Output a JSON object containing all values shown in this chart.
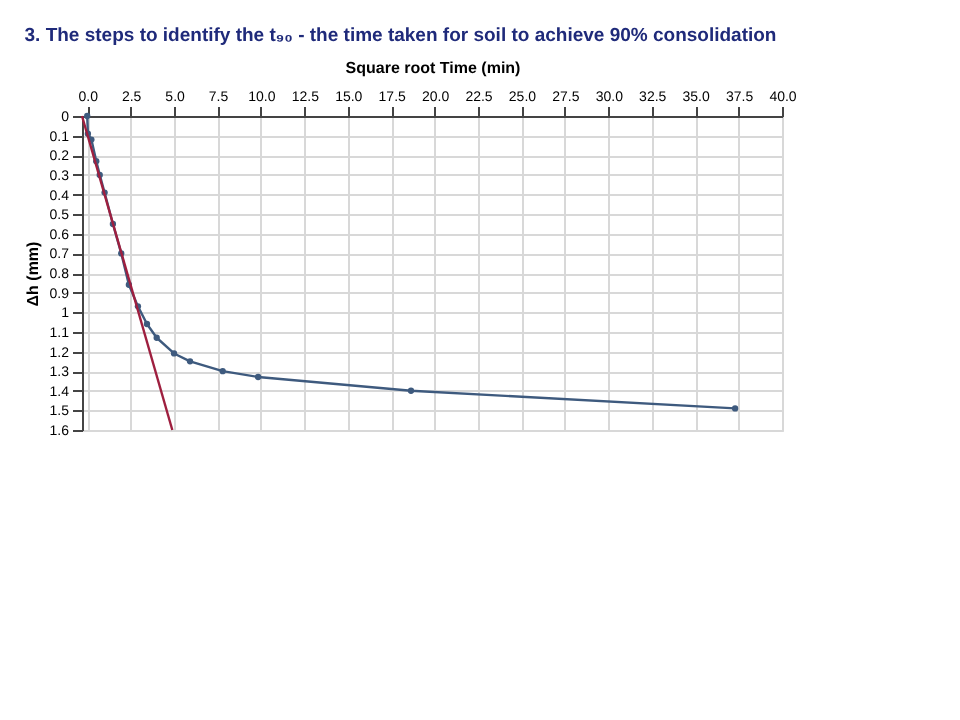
{
  "chart_data": {
    "type": "line",
    "title": "3. The steps to identify the t₉₀ - the time taken for soil to achieve 90% consolidation",
    "xlabel": "Square root Time (min)",
    "ylabel": "Δh (mm)",
    "xlim": [
      -0.3,
      40
    ],
    "ylim": [
      1.6,
      0
    ],
    "xticks": [
      {
        "value": 0,
        "label": "0.0"
      },
      {
        "value": 2.5,
        "label": "2.5"
      },
      {
        "value": 5,
        "label": "5.0"
      },
      {
        "value": 7.5,
        "label": "7.5"
      },
      {
        "value": 10,
        "label": "10.0"
      },
      {
        "value": 12.5,
        "label": "12.5"
      },
      {
        "value": 15,
        "label": "15.0"
      },
      {
        "value": 17.5,
        "label": "17.5"
      },
      {
        "value": 20,
        "label": "20.0"
      },
      {
        "value": 22.5,
        "label": "22.5"
      },
      {
        "value": 25,
        "label": "25.0"
      },
      {
        "value": 27.5,
        "label": "27.5"
      },
      {
        "value": 30,
        "label": "30.0"
      },
      {
        "value": 32.5,
        "label": "32.5"
      },
      {
        "value": 35,
        "label": "35.0"
      },
      {
        "value": 37.5,
        "label": "37.5"
      },
      {
        "value": 40,
        "label": "40.0"
      }
    ],
    "yticks": [
      0,
      0.1,
      0.2,
      0.3,
      0.4,
      0.5,
      0.6,
      0.7,
      0.8,
      0.9,
      1,
      1.1,
      1.2,
      1.3,
      1.4,
      1.5,
      1.6
    ],
    "grid": true,
    "legend": false,
    "series": [
      {
        "marker": "circle",
        "color": "#3e5a7e",
        "x": [
          0,
          0.04,
          0.24,
          0.52,
          0.72,
          1.0,
          1.48,
          1.96,
          2.4,
          2.92,
          3.44,
          4.0,
          5.0,
          5.92,
          7.8,
          9.84,
          18.64,
          37.3
        ],
        "values": [
          0,
          0.09,
          0.12,
          0.23,
          0.3,
          0.39,
          0.55,
          0.7,
          0.86,
          0.97,
          1.06,
          1.13,
          1.21,
          1.25,
          1.3,
          1.33,
          1.4,
          1.49
        ]
      },
      {
        "marker": "none",
        "color": "#9e1f3f",
        "x": [
          -0.3,
          4.9
        ],
        "values": [
          0,
          1.6
        ]
      }
    ]
  }
}
